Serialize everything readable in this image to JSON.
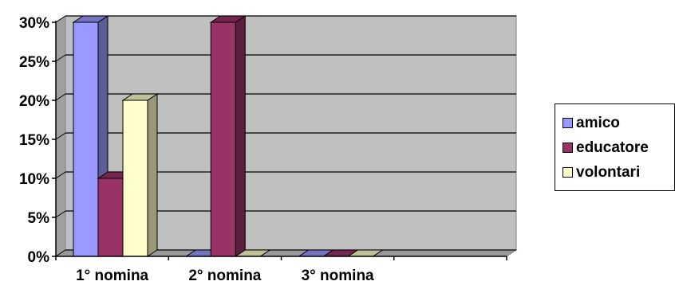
{
  "chart_data": {
    "type": "bar",
    "title": "",
    "xlabel": "",
    "ylabel": "",
    "categories": [
      "1° nomina",
      "2° nomina",
      "3° nomina"
    ],
    "series": [
      {
        "name": "amico",
        "values": [
          30,
          0,
          0
        ],
        "color": "#9999ff"
      },
      {
        "name": "educatore",
        "values": [
          10,
          30,
          0
        ],
        "color": "#993366"
      },
      {
        "name": "volontari",
        "values": [
          20,
          0,
          0
        ],
        "color": "#ffffcc"
      }
    ],
    "ylim": [
      0,
      30
    ],
    "yticks": [
      "0%",
      "5%",
      "10%",
      "15%",
      "20%",
      "25%",
      "30%"
    ],
    "grid": true,
    "legend_position": "right",
    "plot_background": "#c0c0c0",
    "three_d": true
  }
}
